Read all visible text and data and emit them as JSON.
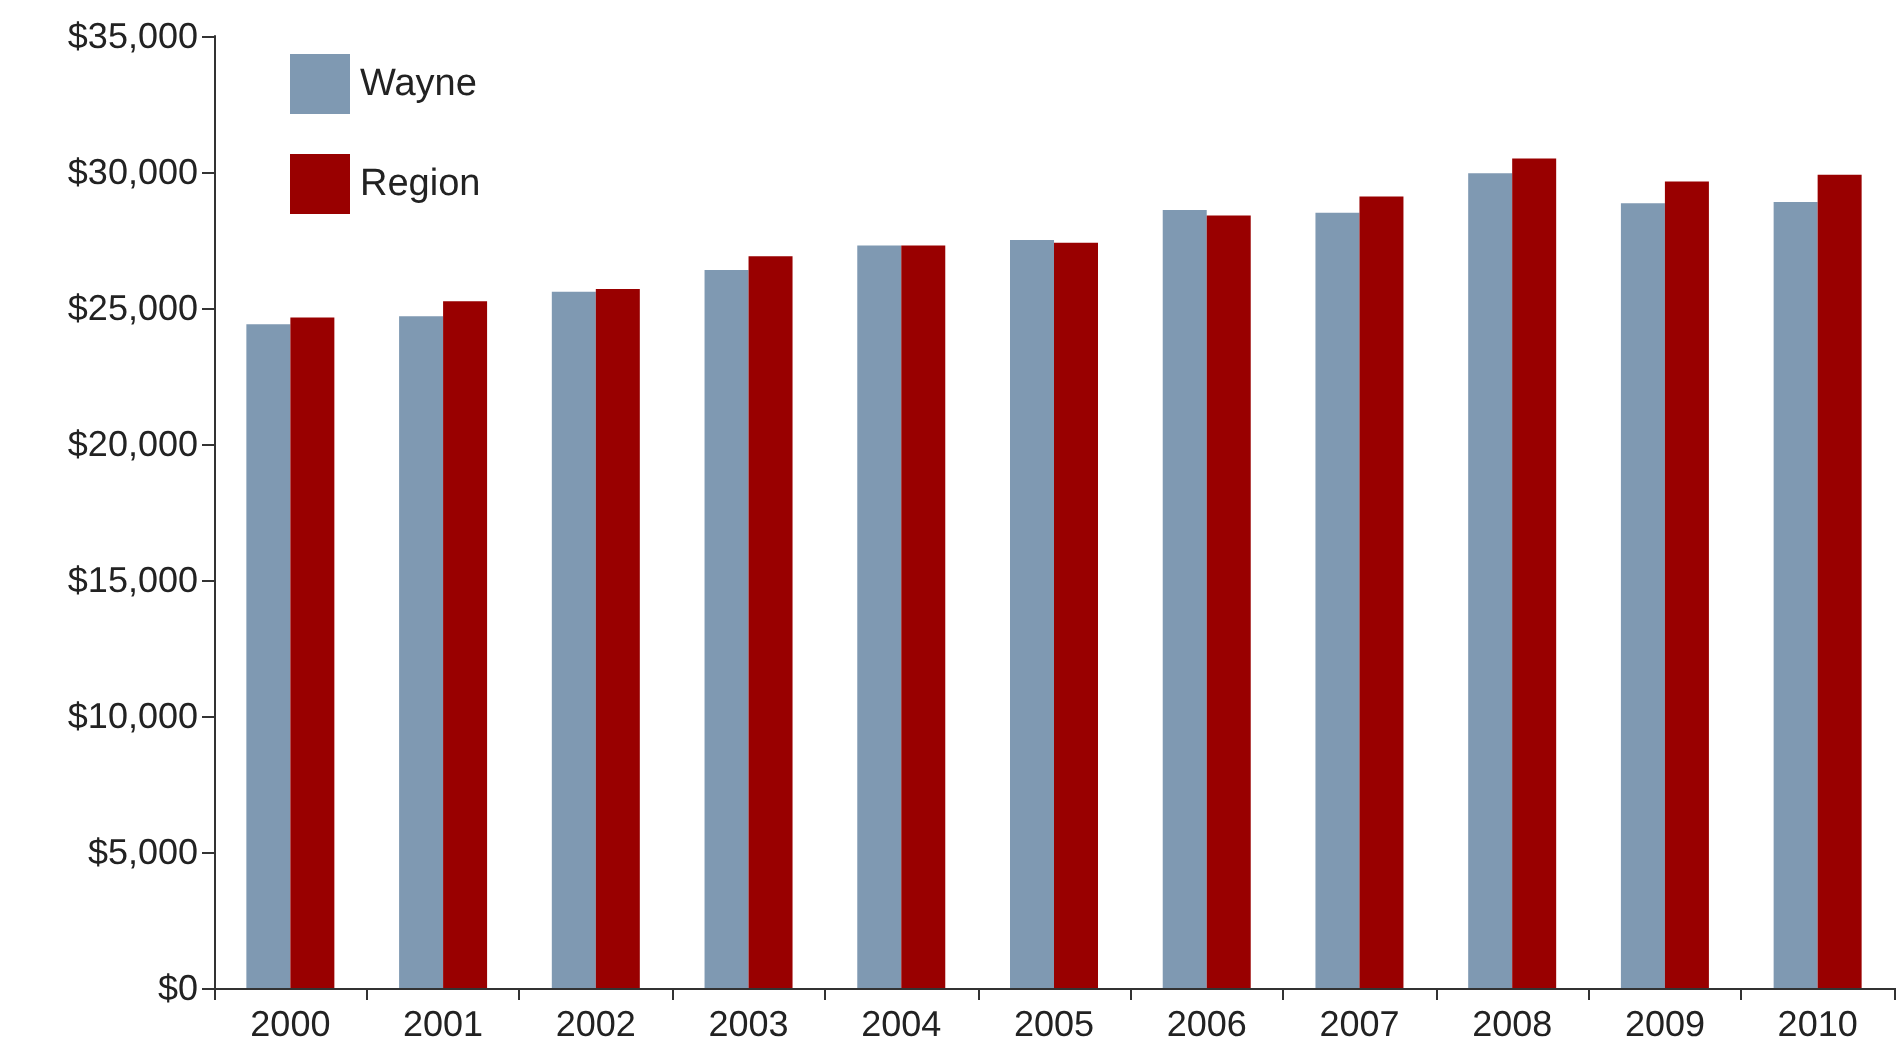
{
  "chart_data": {
    "type": "bar",
    "categories": [
      "2000",
      "2001",
      "2002",
      "2003",
      "2004",
      "2005",
      "2006",
      "2007",
      "2008",
      "2009",
      "2010"
    ],
    "series": [
      {
        "name": "Wayne",
        "color": "#7f99b2",
        "values": [
          24400,
          24700,
          25600,
          26400,
          27300,
          27500,
          28600,
          28500,
          29950,
          28850,
          28900
        ]
      },
      {
        "name": "Region",
        "color": "#990000",
        "values": [
          24650,
          25250,
          25700,
          26900,
          27300,
          27400,
          28400,
          29100,
          30500,
          29650,
          29900
        ]
      }
    ],
    "ylim": [
      0,
      35000
    ],
    "yticks": [
      {
        "value": 0,
        "label": "$0"
      },
      {
        "value": 5000,
        "label": "$5,000"
      },
      {
        "value": 10000,
        "label": "$10,000"
      },
      {
        "value": 15000,
        "label": "$15,000"
      },
      {
        "value": 20000,
        "label": "$20,000"
      },
      {
        "value": 25000,
        "label": "$25,000"
      },
      {
        "value": 30000,
        "label": "$30,000"
      },
      {
        "value": 35000,
        "label": "$35,000"
      }
    ],
    "grid": false,
    "legend": "top left"
  }
}
